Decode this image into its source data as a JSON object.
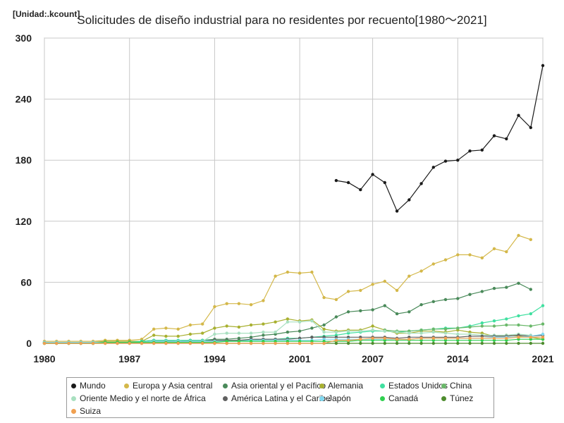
{
  "unit_label": "[Unidad:.kcount]",
  "title": "Solicitudes de diseño industrial para no residentes por recuento[1980～2021]",
  "chart_data": {
    "type": "line",
    "title": "Solicitudes de diseño industrial para no residentes por recuento[1980～2021]",
    "unit": "[Unidad:.kcount]",
    "xlabel": "",
    "ylabel": "",
    "xlim": [
      1980,
      2021
    ],
    "ylim": [
      0,
      300
    ],
    "x_ticks": [
      1980,
      1987,
      1994,
      2001,
      2007,
      2014,
      2021
    ],
    "y_ticks": [
      0,
      60,
      120,
      180,
      240,
      300
    ],
    "grid": true,
    "legend_position": "bottom",
    "x": [
      1980,
      1981,
      1982,
      1983,
      1984,
      1985,
      1986,
      1987,
      1988,
      1989,
      1990,
      1991,
      1992,
      1993,
      1994,
      1995,
      1996,
      1997,
      1998,
      1999,
      2000,
      2001,
      2002,
      2003,
      2004,
      2005,
      2006,
      2007,
      2008,
      2009,
      2010,
      2011,
      2012,
      2013,
      2014,
      2015,
      2016,
      2017,
      2018,
      2019,
      2020,
      2021
    ],
    "series": [
      {
        "name": "Mundo",
        "color": "#1a1a1a",
        "values": [
          null,
          null,
          null,
          null,
          null,
          null,
          null,
          null,
          null,
          null,
          null,
          null,
          null,
          null,
          null,
          null,
          null,
          null,
          null,
          null,
          null,
          null,
          null,
          null,
          160,
          158,
          151,
          166,
          158,
          130,
          141,
          157,
          173,
          179,
          180,
          189,
          190,
          204,
          201,
          224,
          212,
          273
        ]
      },
      {
        "name": "Europa y Asia central",
        "color": "#d4b84a",
        "values": [
          2,
          2,
          2,
          2,
          2,
          3,
          3,
          3,
          4,
          14,
          15,
          14,
          18,
          19,
          36,
          39,
          39,
          38,
          42,
          66,
          70,
          69,
          70,
          45,
          43,
          51,
          52,
          58,
          61,
          52,
          66,
          71,
          78,
          82,
          87,
          87,
          84,
          93,
          90,
          106,
          102,
          null
        ]
      },
      {
        "name": "Asia oriental y el Pacífico",
        "color": "#4a8a5a",
        "values": [
          1,
          1,
          1,
          1,
          1,
          1,
          1,
          1,
          2,
          3,
          3,
          2,
          3,
          3,
          4,
          4,
          5,
          6,
          8,
          9,
          11,
          12,
          15,
          18,
          26,
          31,
          32,
          33,
          37,
          29,
          31,
          38,
          41,
          43,
          44,
          48,
          51,
          54,
          55,
          59,
          53,
          null
        ]
      },
      {
        "name": "Alemania",
        "color": "#a8b030",
        "values": [
          1,
          1,
          1,
          1,
          1,
          2,
          2,
          2,
          2,
          8,
          7,
          7,
          9,
          10,
          15,
          17,
          16,
          18,
          19,
          21,
          24,
          22,
          23,
          14,
          12,
          13,
          13,
          17,
          13,
          10,
          10,
          12,
          12,
          11,
          13,
          11,
          10,
          7,
          8,
          7,
          6,
          4
        ]
      },
      {
        "name": "Estados Unidos",
        "color": "#40e0a0",
        "values": [
          1,
          1,
          1,
          1,
          1,
          1,
          1,
          1,
          2,
          3,
          3,
          3,
          3,
          3,
          3,
          3,
          3,
          3,
          4,
          4,
          5,
          5,
          6,
          7,
          8,
          10,
          11,
          12,
          12,
          11,
          12,
          13,
          14,
          15,
          15,
          17,
          20,
          22,
          24,
          27,
          29,
          37
        ]
      },
      {
        "name": "China",
        "color": "#6ab86a",
        "values": [
          null,
          null,
          null,
          null,
          null,
          null,
          null,
          null,
          null,
          null,
          null,
          null,
          null,
          null,
          null,
          null,
          null,
          null,
          null,
          null,
          null,
          null,
          null,
          null,
          null,
          null,
          null,
          null,
          13,
          12,
          12,
          13,
          14,
          14,
          15,
          16,
          17,
          17,
          18,
          18,
          17,
          19
        ]
      },
      {
        "name": "Oriente Medio y el norte de África",
        "color": "#a8e0c0",
        "values": [
          1,
          1,
          1,
          1,
          1,
          1,
          1,
          1,
          1,
          2,
          2,
          2,
          2,
          2,
          9,
          10,
          10,
          10,
          11,
          11,
          21,
          21,
          22,
          11,
          11,
          12,
          12,
          13,
          12,
          11,
          10,
          10,
          11,
          10,
          9,
          9,
          8,
          8,
          8,
          9,
          8,
          null
        ]
      },
      {
        "name": "América Latina y el Caribe",
        "color": "#606060",
        "values": [
          0,
          0,
          0,
          0,
          0,
          1,
          1,
          1,
          1,
          2,
          2,
          2,
          2,
          2,
          3,
          3,
          3,
          4,
          4,
          4,
          4,
          5,
          6,
          6,
          6,
          6,
          6,
          6,
          6,
          5,
          6,
          6,
          6,
          6,
          6,
          7,
          7,
          7,
          7,
          8,
          7,
          8
        ]
      },
      {
        "name": "Japón",
        "color": "#80d8f0",
        "values": [
          1,
          1,
          1,
          1,
          1,
          1,
          1,
          1,
          1,
          2,
          2,
          2,
          2,
          2,
          2,
          2,
          2,
          3,
          3,
          3,
          3,
          3,
          3,
          4,
          4,
          4,
          4,
          4,
          4,
          4,
          4,
          5,
          5,
          5,
          5,
          5,
          5,
          6,
          6,
          6,
          7,
          9
        ]
      },
      {
        "name": "Canadá",
        "color": "#30d050",
        "values": [
          0,
          0,
          0,
          0,
          0,
          1,
          1,
          1,
          1,
          1,
          1,
          1,
          1,
          1,
          1,
          2,
          2,
          2,
          2,
          2,
          2,
          2,
          2,
          2,
          2,
          2,
          3,
          3,
          3,
          3,
          3,
          3,
          3,
          3,
          3,
          3,
          3,
          3,
          3,
          4,
          4,
          4
        ]
      },
      {
        "name": "Túnez",
        "color": "#4e8c2e",
        "values": [
          0,
          0,
          0,
          0,
          0,
          0,
          0,
          0,
          0,
          0,
          0,
          0,
          0,
          0,
          0,
          0,
          0,
          0,
          0,
          0,
          0,
          0,
          0,
          0,
          0,
          0,
          0,
          0,
          0,
          0,
          0,
          0,
          0,
          0,
          0,
          0,
          0,
          0,
          0,
          0,
          0,
          0
        ]
      },
      {
        "name": "Suiza",
        "color": "#f0a050",
        "values": [
          0,
          0,
          0,
          0,
          0,
          0,
          0,
          0,
          0,
          0,
          0,
          0,
          0,
          0,
          0,
          0,
          0,
          0,
          0,
          0,
          0,
          0,
          0,
          0,
          3,
          3,
          4,
          5,
          5,
          4,
          4,
          5,
          5,
          5,
          5,
          5,
          5,
          5,
          5,
          6,
          6,
          6
        ]
      }
    ]
  }
}
